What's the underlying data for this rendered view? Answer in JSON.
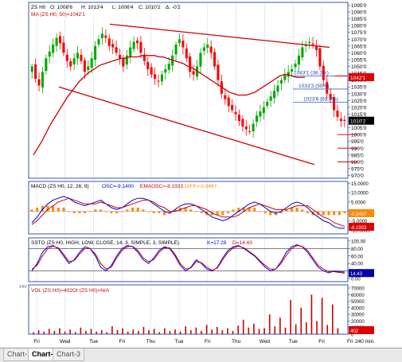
{
  "main_panel": {
    "header": {
      "symbol": "ZS H0",
      "open": "O: 1008'6",
      "high": "H: 1013'4",
      "low": "L: 1006'4",
      "close": "C: 1010'2",
      "change": "Δ: -0'2"
    },
    "ma_label": "MA (ZS H0, 50)=1042'1",
    "price_ticks": [
      "1095'0",
      "1090'0",
      "1085'0",
      "1080'0",
      "1075'0",
      "1070'0",
      "1065'0",
      "1060'0",
      "1055'0",
      "1050'0",
      "1045'0",
      "1040'0",
      "1035'0",
      "1030'0",
      "1025'0",
      "1020'0",
      "1015'0",
      "1010'0",
      "1005'0",
      "1000'0",
      "995'0",
      "990'0",
      "985'0",
      "980'0",
      "975'0",
      "970'0"
    ],
    "ma_value_badge": "1042'1",
    "last_price_badge": "1010'2",
    "fib_labels": [
      "1043'1 (38.2%)",
      "1033'3 (50%)",
      "1023'6 (61.8%)"
    ]
  },
  "macd_panel": {
    "label": "MACD (ZS H0, 12, 26, 9)",
    "osc": "OSC=-9.1400",
    "emaosc": "EMAOSC=-8.1933",
    "diff": "DIFF=-0.9467",
    "ticks": [
      "15.0000",
      "10.0000",
      "5.0000",
      "0.0000",
      "-5.0000",
      "-10.0000"
    ],
    "badge_diff": "-0.9467",
    "badge_ema": "-8.1933"
  },
  "ssto_panel": {
    "label": "SSTO (ZS H0, HIGH, LOW, CLOSE, 14, 3, SIMPLE, 3, SIMPLE)",
    "k": "K=17.28",
    "d": "D=14.43",
    "ticks": [
      "100.00",
      "80.00",
      "60.00",
      "40.00",
      "20.00",
      "0.00"
    ],
    "badge": "14.43"
  },
  "volume_panel": {
    "label_vol": "VOL (ZS H0)=402",
    "label_oi": "OI (ZS H0)=N/A",
    "ticks": [
      "70000",
      "60000",
      "50000",
      "40000",
      "30000",
      "20000",
      "10000",
      "0"
    ],
    "badge": "402",
    "left_marker": "14V"
  },
  "x_axis": {
    "labels": [
      "Fri",
      "Wed",
      "Tue",
      "Fri",
      "Thu",
      "Tue",
      "Fri",
      "Thu",
      "Wed",
      "Tue",
      "Fri",
      "Fri"
    ],
    "timeframe": "240 min."
  },
  "tabs": [
    "Chart-1",
    "Chart-2",
    "Chart-3"
  ],
  "active_tab": 1,
  "colors": {
    "up": "#00aa00",
    "down": "#ff0000",
    "ma": "#cc0000",
    "trend": "#cc0000",
    "macd_line": "#0000cc",
    "macd_signal": "#cc0000",
    "macd_hist": "#ff8800",
    "ssto_k": "#0000ff",
    "ssto_d": "#cc0000",
    "volume": "#cc0000",
    "grid": "#c8d4f0"
  },
  "chart_data": [
    {
      "type": "candlestick",
      "title": "ZS H0",
      "ylim": [
        968,
        1097
      ],
      "close": [
        1050,
        1041,
        1036,
        1046,
        1056,
        1061,
        1066,
        1071,
        1067,
        1060,
        1054,
        1050,
        1056,
        1060,
        1054,
        1046,
        1050,
        1056,
        1065,
        1070,
        1074,
        1071,
        1065,
        1064,
        1060,
        1056,
        1050,
        1058,
        1064,
        1068,
        1067,
        1060,
        1054,
        1048,
        1044,
        1041,
        1039,
        1044,
        1048,
        1052,
        1058,
        1066,
        1070,
        1064,
        1056,
        1046,
        1044,
        1050,
        1060,
        1064,
        1066,
        1060,
        1050,
        1040,
        1030,
        1026,
        1021,
        1018,
        1015,
        1010,
        1006,
        1004,
        1002,
        1008,
        1014,
        1017,
        1020,
        1024,
        1028,
        1032,
        1036,
        1040,
        1044,
        1046,
        1048,
        1052,
        1058,
        1064,
        1066,
        1068,
        1066,
        1062,
        1050,
        1040,
        1030,
        1026,
        1018,
        1013,
        1010,
        1010
      ],
      "ma": {
        "name": "MA (ZS H0, 50)",
        "values": [
          985,
          990,
          995,
          1001,
          1007,
          1012,
          1017,
          1022,
          1027,
          1031,
          1035,
          1039,
          1042,
          1045,
          1047,
          1049,
          1051,
          1052,
          1053,
          1054,
          1055,
          1056,
          1056,
          1057,
          1057,
          1057,
          1058,
          1058,
          1058,
          1058,
          1057,
          1057,
          1056,
          1055,
          1054,
          1053,
          1052,
          1050,
          1049,
          1047,
          1045,
          1043,
          1041,
          1039,
          1037,
          1035,
          1033,
          1031,
          1030,
          1029,
          1029,
          1029,
          1030,
          1031,
          1033,
          1035,
          1037,
          1039,
          1041,
          1043,
          1044,
          1044,
          1043,
          1042,
          1042,
          1042
        ]
      },
      "fibonacci": [
        {
          "label": "1043'1 (38.2%)",
          "value": 1043.1
        },
        {
          "label": "1033'3 (50%)",
          "value": 1033.4
        },
        {
          "label": "1023'6 (61.8%)",
          "value": 1023.75
        }
      ]
    },
    {
      "type": "line",
      "title": "MACD (ZS H0, 12, 26, 9)",
      "ylim": [
        -12,
        16
      ],
      "series": [
        {
          "name": "OSC",
          "values": [
            -6,
            -3,
            1,
            4,
            6,
            7,
            8,
            7,
            5,
            4,
            3,
            4,
            5,
            6,
            4,
            2,
            1,
            2,
            4,
            6,
            7,
            7,
            6,
            4,
            2,
            0,
            -1,
            1,
            3,
            4,
            4,
            3,
            1,
            -1,
            -3,
            -4,
            -5,
            -4,
            -2,
            0,
            2,
            4,
            5,
            4,
            2,
            0,
            -1,
            0,
            2,
            4,
            5,
            4,
            2,
            -1,
            -3,
            -5,
            -6,
            -8,
            -9,
            -9
          ]
        },
        {
          "name": "EMAOSC",
          "values": [
            -7,
            -5,
            -2,
            1,
            3,
            5,
            6,
            7,
            6,
            5,
            4,
            4,
            4,
            5,
            4,
            3,
            2,
            2,
            3,
            4,
            5,
            6,
            6,
            5,
            3,
            2,
            0,
            0,
            1,
            2,
            3,
            3,
            2,
            1,
            -1,
            -2,
            -3,
            -3,
            -3,
            -2,
            0,
            2,
            3,
            4,
            3,
            2,
            1,
            1,
            1,
            2,
            3,
            3,
            3,
            1,
            -1,
            -3,
            -4,
            -6,
            -7,
            -8
          ]
        },
        {
          "name": "DIFF",
          "values": [
            1,
            2,
            3,
            3,
            3,
            2,
            2,
            0,
            -1,
            -1,
            -1,
            0,
            1,
            1,
            0,
            -1,
            -1,
            0,
            1,
            2,
            2,
            1,
            0,
            -1,
            -1,
            -2,
            -1,
            1,
            2,
            2,
            1,
            0,
            -1,
            -2,
            -2,
            -2,
            -2,
            -1,
            1,
            2,
            2,
            2,
            2,
            0,
            -1,
            -2,
            -2,
            -1,
            1,
            2,
            2,
            1,
            -1,
            -2,
            -2,
            -2,
            -2,
            -2,
            -2,
            -1
          ]
        }
      ]
    },
    {
      "type": "line",
      "title": "SSTO (ZS H0, HIGH, LOW, CLOSE, 14, 3, SIMPLE, 3, SIMPLE)",
      "ylim": [
        0,
        100
      ],
      "series": [
        {
          "name": "K",
          "values": [
            20,
            40,
            70,
            85,
            88,
            80,
            60,
            40,
            50,
            70,
            85,
            80,
            60,
            30,
            20,
            35,
            60,
            80,
            88,
            85,
            70,
            50,
            40,
            55,
            75,
            85,
            80,
            60,
            35,
            20,
            30,
            50,
            40,
            25,
            20,
            30,
            55,
            75,
            85,
            88,
            80,
            70,
            60,
            45,
            30,
            20,
            25,
            45,
            70,
            85,
            90,
            85,
            70,
            50,
            30,
            20,
            15,
            20,
            18,
            17
          ]
        },
        {
          "name": "D",
          "values": [
            25,
            35,
            60,
            80,
            86,
            82,
            65,
            45,
            48,
            65,
            80,
            80,
            65,
            40,
            25,
            30,
            55,
            75,
            85,
            86,
            75,
            55,
            45,
            50,
            70,
            82,
            82,
            65,
            40,
            25,
            28,
            45,
            42,
            30,
            22,
            28,
            50,
            70,
            82,
            86,
            82,
            72,
            62,
            48,
            35,
            25,
            25,
            40,
            62,
            80,
            88,
            86,
            75,
            55,
            35,
            25,
            18,
            18,
            16,
            14
          ]
        }
      ]
    },
    {
      "type": "bar",
      "title": "VOL (ZS H0)",
      "ylim": [
        0,
        70000
      ],
      "series": [
        {
          "name": "VOL",
          "values": [
            3000,
            6000,
            4000,
            8000,
            5000,
            9000,
            4000,
            7000,
            3000,
            10000,
            5000,
            8000,
            4000,
            6000,
            3000,
            12000,
            6000,
            9000,
            4000,
            7000,
            5000,
            11000,
            6000,
            8000,
            3000,
            9000,
            5000,
            7000,
            4000,
            12000,
            6000,
            10000,
            5000,
            14000,
            7000,
            11000,
            6000,
            9000,
            5000,
            13000,
            22000,
            10000,
            16000,
            8000,
            9000,
            30000,
            12000,
            25000,
            10000,
            52000,
            15000,
            40000,
            18000,
            60000,
            20000,
            55000,
            14000,
            45000,
            9000,
            402
          ]
        }
      ]
    }
  ]
}
